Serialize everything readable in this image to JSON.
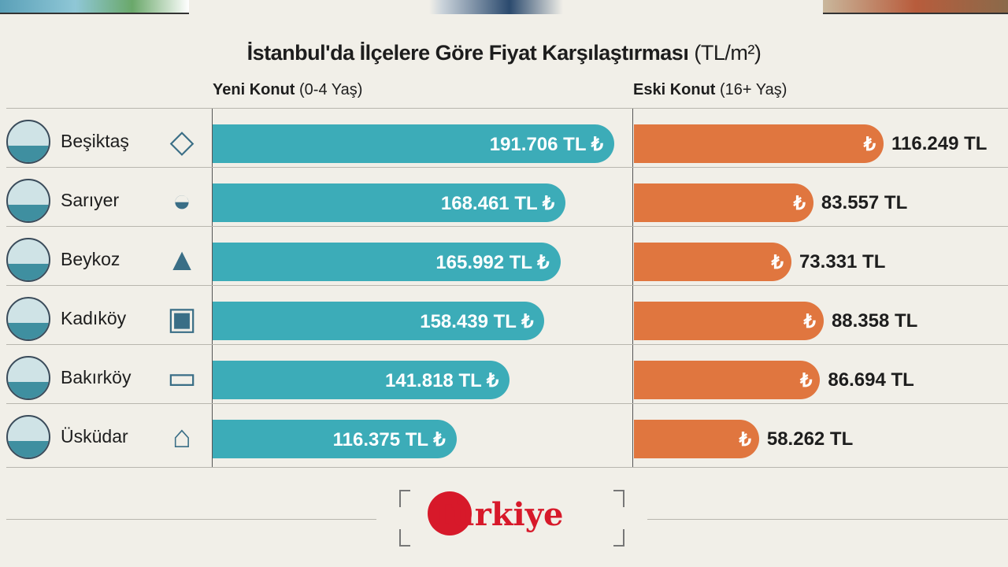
{
  "chart_data": {
    "type": "bar",
    "title": "İstanbul'da İlçelere Göre Fiyat Karşılaştırması",
    "unit": "(TL/m²)",
    "categories": [
      "Beşiktaş",
      "Sarıyer",
      "Beykoz",
      "Kadıköy",
      "Bakırköy",
      "Üsküdar"
    ],
    "icons": [
      "diamond-icon",
      "sunset-sea-icon",
      "pine-trees-icon",
      "ferry-ticket-icon",
      "tram-icon",
      "mosque-icon"
    ],
    "series": [
      {
        "name": "Yeni Konut",
        "subtitle": "(0-4 Yaş)",
        "color": "#3cacb8",
        "values": [
          191706,
          168461,
          165992,
          158439,
          141818,
          116375
        ],
        "labels": [
          "191.706 TL",
          "168.461 TL",
          "165.992 TL",
          "158.439 TL",
          "141.818 TL",
          "116.375 TL"
        ]
      },
      {
        "name": "Eski Konut",
        "subtitle": "(16+ Yaş)",
        "color": "#e0763f",
        "values": [
          116249,
          83557,
          73331,
          88358,
          86694,
          58262
        ],
        "labels": [
          "116.249 TL",
          "83.557 TL",
          "73.331 TL",
          "88.358 TL",
          "86.694 TL",
          "58.262 TL"
        ]
      }
    ],
    "lira_symbol": "₺",
    "xlim": [
      0,
      191706
    ]
  },
  "logo": {
    "text": "Türkiye",
    "color": "#d7192a"
  }
}
